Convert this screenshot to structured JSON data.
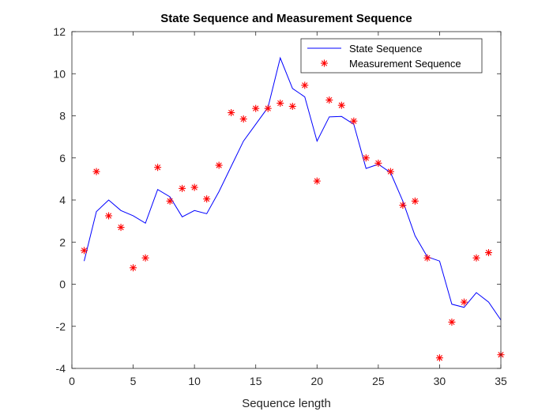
{
  "chart_data": {
    "type": "line",
    "title": "State Sequence and Measurement Sequence",
    "xlabel": "Sequence length",
    "ylabel": "",
    "xlim": [
      0,
      35
    ],
    "ylim": [
      -4,
      12
    ],
    "xticks": [
      0,
      5,
      10,
      15,
      20,
      25,
      30,
      35
    ],
    "yticks": [
      -4,
      -2,
      0,
      2,
      4,
      6,
      8,
      10,
      12
    ],
    "grid": false,
    "legend_position": "top-right",
    "series": [
      {
        "name": "State Sequence",
        "style": "line",
        "color": "#0000ff",
        "x": [
          1,
          2,
          3,
          4,
          5,
          6,
          7,
          8,
          9,
          10,
          11,
          12,
          13,
          14,
          15,
          16,
          17,
          18,
          19,
          20,
          21,
          22,
          23,
          24,
          25,
          26,
          27,
          28,
          29,
          30,
          31,
          32,
          33,
          34,
          35
        ],
        "y": [
          1.1,
          3.45,
          4.0,
          3.5,
          3.25,
          2.9,
          4.5,
          4.15,
          3.2,
          3.5,
          3.35,
          4.4,
          5.6,
          6.8,
          7.6,
          8.4,
          10.75,
          9.3,
          8.9,
          6.8,
          7.95,
          7.97,
          7.6,
          5.5,
          5.7,
          5.3,
          3.95,
          2.3,
          1.3,
          1.1,
          -0.95,
          -1.1,
          -0.4,
          -0.85,
          -1.7
        ]
      },
      {
        "name": "Measurement Sequence",
        "style": "markers",
        "marker": "asterisk",
        "color": "#ff0000",
        "x": [
          1,
          2,
          3,
          4,
          5,
          6,
          7,
          8,
          9,
          10,
          11,
          12,
          13,
          14,
          15,
          16,
          17,
          18,
          19,
          20,
          21,
          22,
          23,
          24,
          25,
          26,
          27,
          28,
          29,
          30,
          31,
          32,
          33,
          34,
          35
        ],
        "y": [
          1.6,
          5.35,
          3.25,
          2.7,
          0.78,
          1.25,
          5.55,
          3.95,
          4.55,
          4.6,
          4.05,
          5.65,
          8.15,
          7.85,
          8.35,
          8.35,
          8.6,
          8.45,
          9.45,
          4.9,
          8.75,
          8.5,
          7.75,
          6.0,
          5.75,
          5.35,
          3.75,
          3.95,
          1.25,
          -3.5,
          -1.8,
          -0.85,
          1.25,
          1.5,
          -3.35
        ]
      }
    ]
  }
}
